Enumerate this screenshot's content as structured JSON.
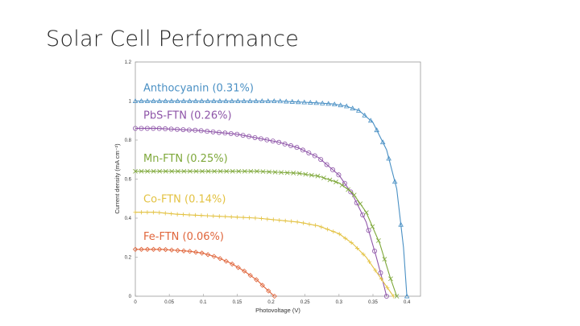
{
  "slide": {
    "title": "Solar Cell Performance"
  },
  "chart_data": {
    "type": "line",
    "xlabel": "Photovoltage (V)",
    "ylabel": "Current density (mA cm⁻²)",
    "xlim": [
      0,
      0.42
    ],
    "ylim": [
      0,
      1.2
    ],
    "xticks": [
      "0",
      "0.05",
      "0.1",
      "0.15",
      "0.2",
      "0.25",
      "0.3",
      "0.35",
      "0.4"
    ],
    "yticks": [
      "0",
      "0.2",
      "0.4",
      "0.6",
      "0.8",
      "1",
      "1.2"
    ],
    "grid": false,
    "legend_placement": "inline-left",
    "series": [
      {
        "name": "Anthocyanin (0.31%)",
        "color": "#4a90c4",
        "marker": "triangle",
        "x": [
          0,
          0.03,
          0.06,
          0.09,
          0.12,
          0.15,
          0.18,
          0.21,
          0.24,
          0.27,
          0.29,
          0.31,
          0.33,
          0.35,
          0.37,
          0.385,
          0.395,
          0.4
        ],
        "y": [
          1.0,
          1.0,
          1.0,
          1.0,
          1.0,
          1.0,
          1.0,
          1.0,
          0.995,
          0.99,
          0.985,
          0.975,
          0.95,
          0.89,
          0.75,
          0.55,
          0.25,
          0.0
        ]
      },
      {
        "name": "PbS-FTN (0.26%)",
        "color": "#8e55a8",
        "marker": "circle",
        "x": [
          0,
          0.03,
          0.06,
          0.09,
          0.12,
          0.15,
          0.18,
          0.21,
          0.24,
          0.27,
          0.3,
          0.32,
          0.34,
          0.355,
          0.365,
          0.37
        ],
        "y": [
          0.86,
          0.86,
          0.855,
          0.85,
          0.84,
          0.83,
          0.81,
          0.79,
          0.76,
          0.71,
          0.62,
          0.52,
          0.38,
          0.2,
          0.07,
          0.0
        ]
      },
      {
        "name": "Mn-FTN (0.25%)",
        "color": "#7ea83a",
        "marker": "x",
        "x": [
          0,
          0.03,
          0.06,
          0.09,
          0.12,
          0.15,
          0.18,
          0.21,
          0.24,
          0.27,
          0.3,
          0.32,
          0.34,
          0.36,
          0.375,
          0.385
        ],
        "y": [
          0.64,
          0.64,
          0.64,
          0.64,
          0.64,
          0.64,
          0.64,
          0.635,
          0.63,
          0.615,
          0.58,
          0.53,
          0.43,
          0.27,
          0.1,
          0.0
        ]
      },
      {
        "name": "Co-FTN (0.14%)",
        "color": "#e3c242",
        "marker": "plus",
        "x": [
          0,
          0.03,
          0.06,
          0.09,
          0.12,
          0.15,
          0.18,
          0.21,
          0.24,
          0.27,
          0.3,
          0.32,
          0.34,
          0.36,
          0.37,
          0.38
        ],
        "y": [
          0.43,
          0.43,
          0.42,
          0.415,
          0.41,
          0.405,
          0.4,
          0.39,
          0.38,
          0.36,
          0.32,
          0.27,
          0.2,
          0.1,
          0.05,
          0.0
        ]
      },
      {
        "name": "Fe-FTN (0.06%)",
        "color": "#e0663c",
        "marker": "diamond",
        "x": [
          0,
          0.02,
          0.04,
          0.06,
          0.08,
          0.1,
          0.12,
          0.14,
          0.16,
          0.18,
          0.195,
          0.205
        ],
        "y": [
          0.24,
          0.24,
          0.24,
          0.235,
          0.23,
          0.22,
          0.2,
          0.17,
          0.13,
          0.08,
          0.03,
          0.0
        ]
      }
    ]
  }
}
